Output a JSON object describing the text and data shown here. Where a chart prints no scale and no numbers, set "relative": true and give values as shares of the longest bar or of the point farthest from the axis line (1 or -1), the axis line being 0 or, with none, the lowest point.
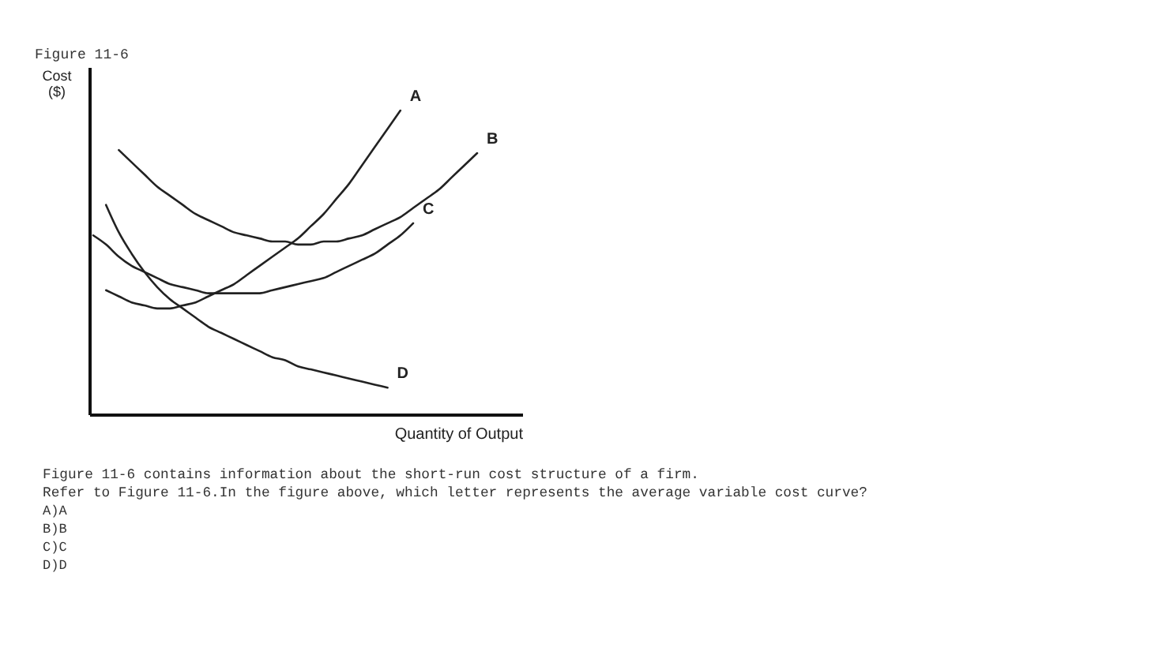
{
  "chart_data": {
    "type": "line",
    "title": "Figure 11-6",
    "xlabel": "Quantity of Output",
    "ylabel": "Cost\n($)",
    "relative": true,
    "categories": [
      null,
      null,
      null,
      null,
      null,
      null,
      null,
      null,
      null,
      null,
      null,
      null,
      null,
      null,
      null,
      null,
      null,
      null,
      null,
      null,
      null,
      null,
      null,
      null,
      null,
      null,
      null,
      null,
      null,
      null,
      null
    ],
    "series": [
      {
        "name": "A",
        "color": "#222222",
        "values": [
          null,
          0.41,
          0.39,
          0.37,
          0.36,
          0.35,
          0.35,
          0.36,
          0.37,
          0.39,
          0.41,
          0.43,
          0.46,
          0.49,
          0.52,
          0.55,
          0.58,
          0.62,
          0.66,
          0.71,
          0.76,
          0.82,
          0.88,
          0.94,
          1.0,
          null,
          null,
          null,
          null,
          null,
          null
        ]
      },
      {
        "name": "B",
        "color": "#222222",
        "values": [
          null,
          null,
          0.87,
          0.83,
          0.79,
          0.75,
          0.72,
          0.69,
          0.66,
          0.64,
          0.62,
          0.6,
          0.59,
          0.58,
          0.57,
          0.57,
          0.56,
          0.56,
          0.57,
          0.57,
          0.58,
          0.59,
          0.61,
          0.63,
          0.65,
          0.68,
          0.71,
          0.74,
          0.78,
          0.82,
          0.86
        ]
      },
      {
        "name": "C",
        "color": "#222222",
        "values": [
          0.59,
          0.56,
          0.52,
          0.49,
          0.47,
          0.45,
          0.43,
          0.42,
          0.41,
          0.4,
          0.4,
          0.4,
          0.4,
          0.4,
          0.41,
          0.42,
          0.43,
          0.44,
          0.45,
          0.47,
          0.49,
          0.51,
          0.53,
          0.56,
          0.59,
          0.63,
          null,
          null,
          null,
          null,
          null
        ]
      },
      {
        "name": "D",
        "color": "#222222",
        "values": [
          null,
          0.69,
          0.6,
          0.53,
          0.47,
          0.42,
          0.38,
          0.35,
          0.32,
          0.29,
          0.27,
          0.25,
          0.23,
          0.21,
          0.19,
          0.18,
          0.16,
          0.15,
          0.14,
          0.13,
          0.12,
          0.11,
          0.1,
          0.09,
          null,
          null,
          null,
          null,
          null,
          null,
          null
        ]
      }
    ],
    "annotations": [
      "Figure 11-6 contains information about the short-run cost structure of a firm.",
      "Refer to Figure 11-6.In the figure above, which letter represents the average variable cost curve?",
      "A)A",
      "B)B",
      "C)C",
      "D)D"
    ]
  }
}
